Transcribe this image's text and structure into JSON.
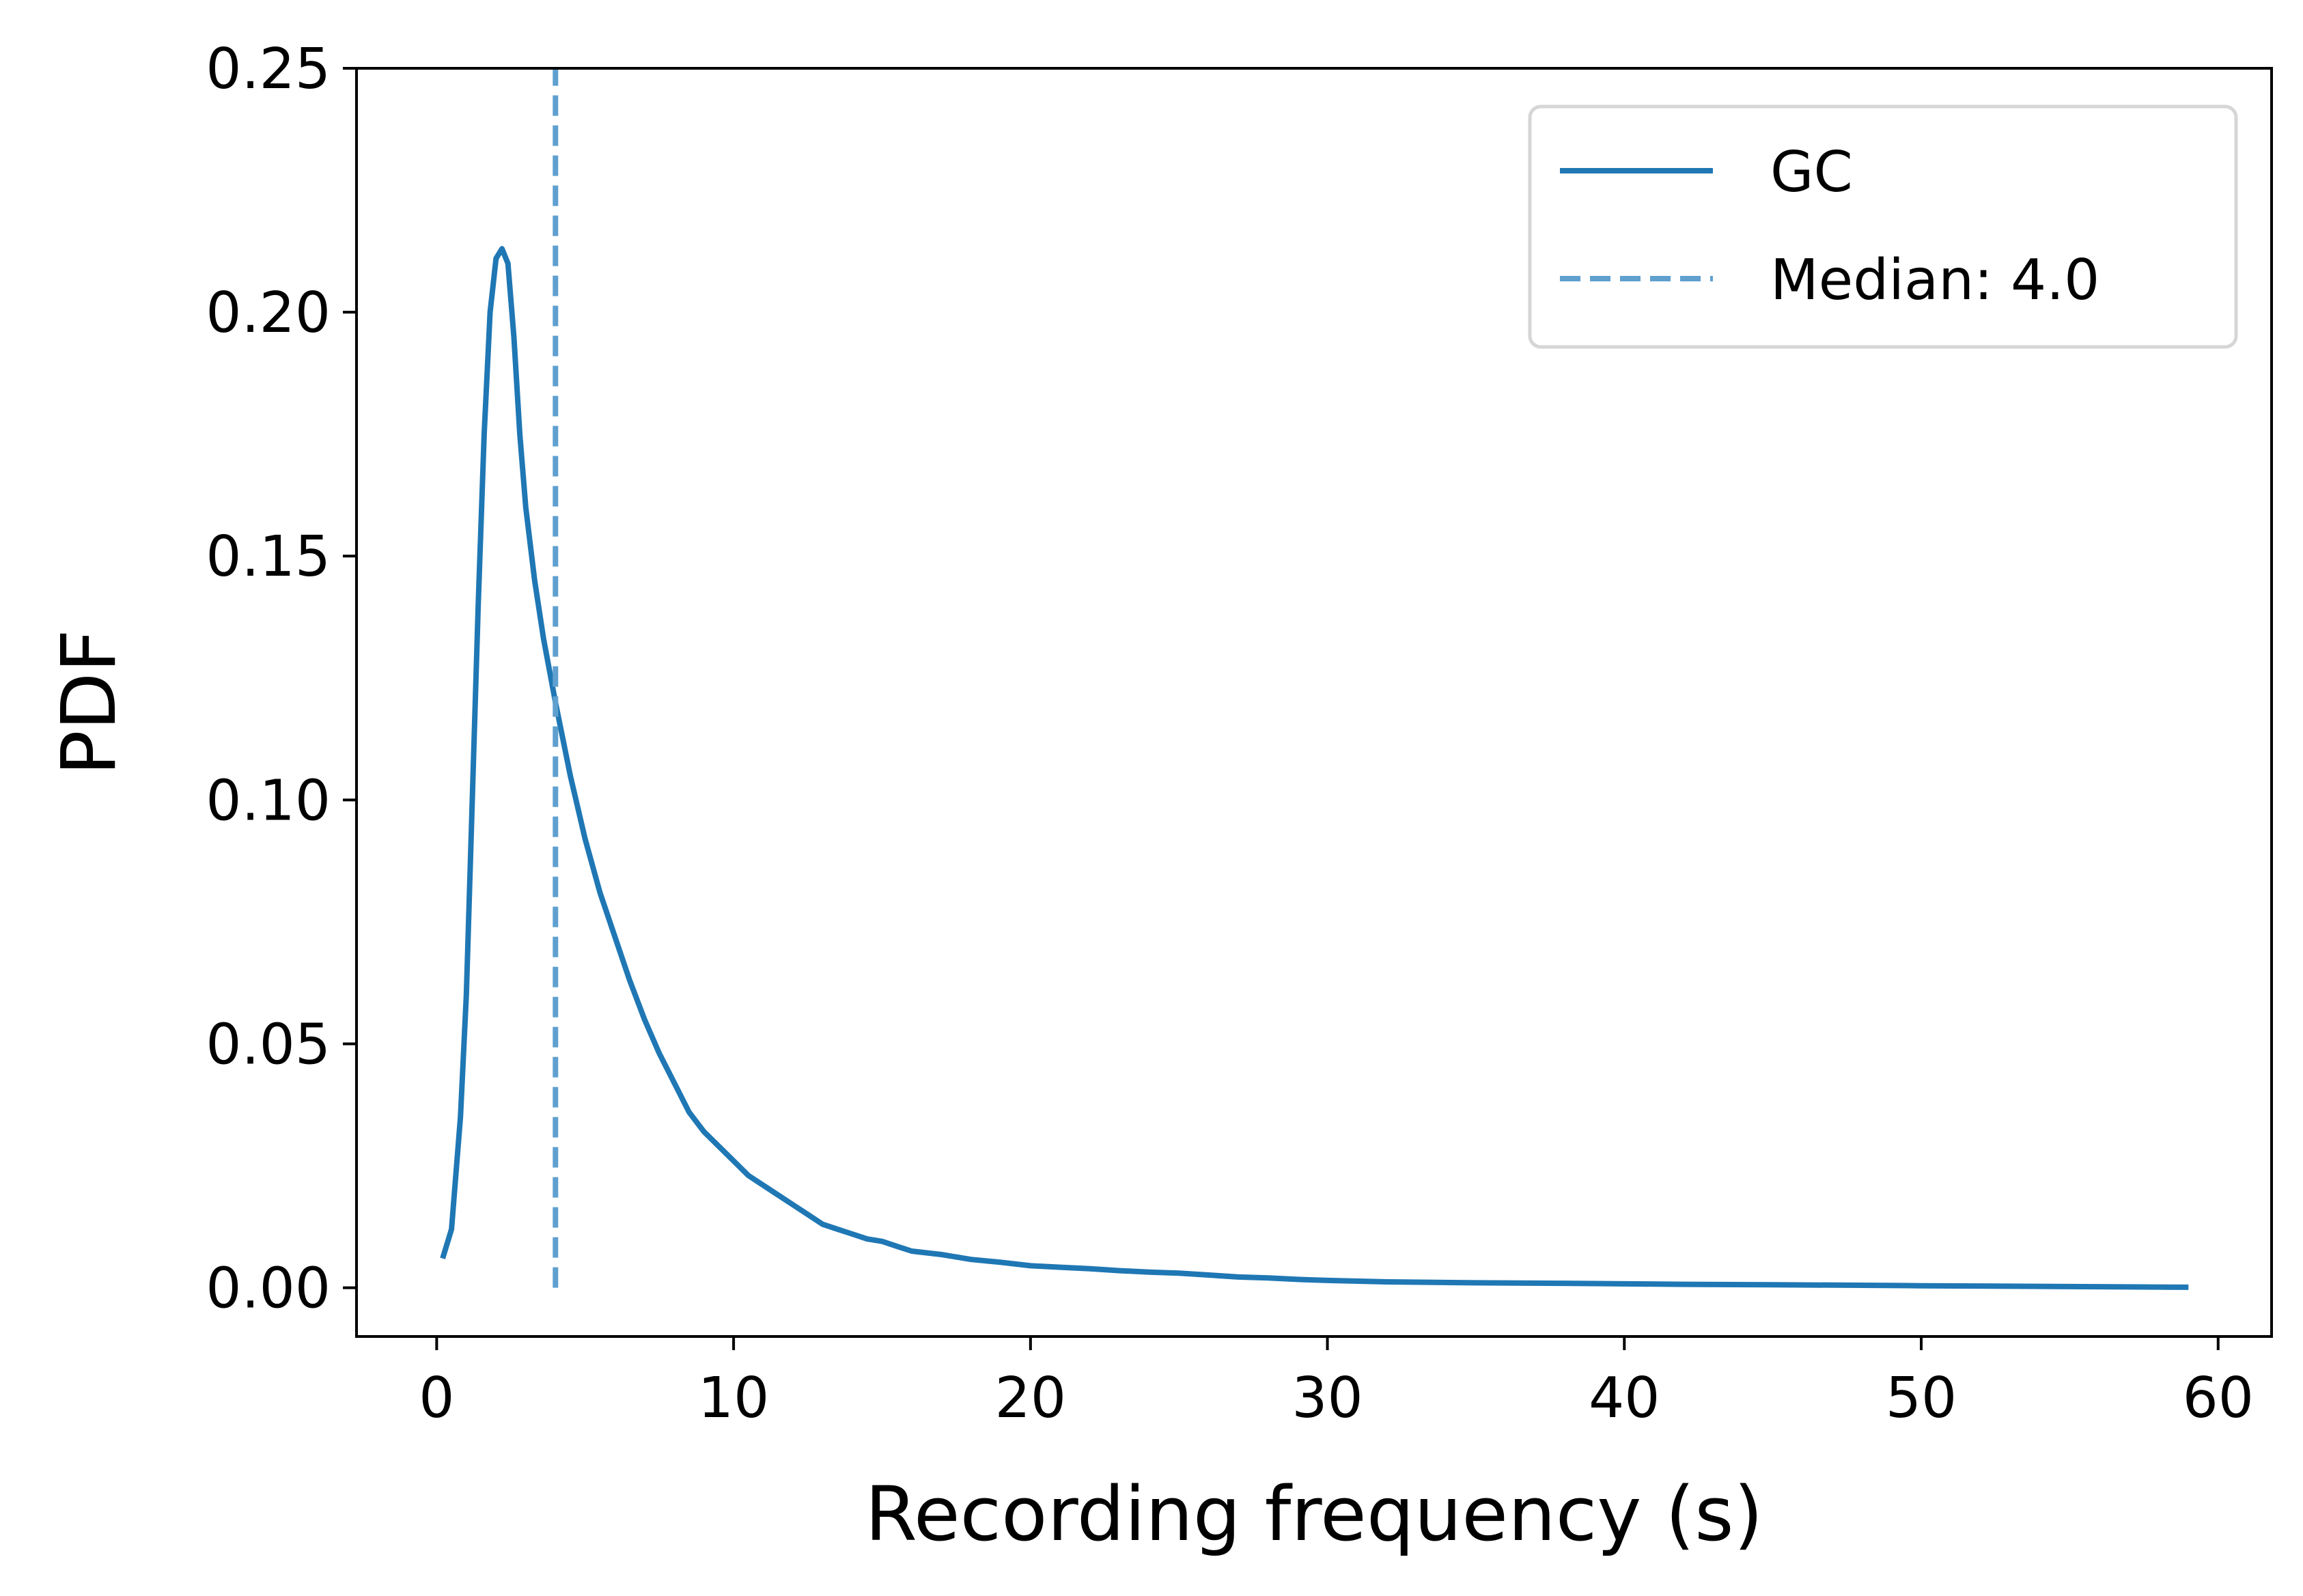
{
  "chart_data": {
    "type": "line",
    "title": "",
    "xlabel": "Recording frequency (s)",
    "ylabel": "PDF",
    "xlim": [
      -2.7,
      61.8
    ],
    "ylim": [
      -0.01,
      0.25
    ],
    "xticks": [
      "0",
      "10",
      "20",
      "30",
      "40",
      "50",
      "60"
    ],
    "xtick_values": [
      0,
      10,
      20,
      30,
      40,
      50,
      60
    ],
    "yticks": [
      "0.00",
      "0.05",
      "0.10",
      "0.15",
      "0.20",
      "0.25"
    ],
    "ytick_values": [
      0.0,
      0.05,
      0.1,
      0.15,
      0.2,
      0.25
    ],
    "grid": false,
    "legend_position": "top-right",
    "series": [
      {
        "name": "GC",
        "style": "solid",
        "color": "#1f77b4",
        "x": [
          0.2,
          0.5,
          0.8,
          1.0,
          1.2,
          1.4,
          1.6,
          1.8,
          2.0,
          2.2,
          2.4,
          2.6,
          2.8,
          3.0,
          3.3,
          3.6,
          4.0,
          4.5,
          5.0,
          5.5,
          6.0,
          6.5,
          7.0,
          7.5,
          8.0,
          8.5,
          9.0,
          9.5,
          10.0,
          10.5,
          11.0,
          11.5,
          12.0,
          12.5,
          13.0,
          13.5,
          14.0,
          14.5,
          15.0,
          15.5,
          16.0,
          17.0,
          18.0,
          19.0,
          20.0,
          21.0,
          22.0,
          23.0,
          24.0,
          25.0,
          26.0,
          27.0,
          28.0,
          29.0,
          30.0,
          32.0,
          35.0,
          38.0,
          40.0,
          42.0,
          45.0,
          48.0,
          50.0,
          53.0,
          56.0,
          59.0
        ],
        "y": [
          0.006,
          0.012,
          0.035,
          0.06,
          0.1,
          0.14,
          0.175,
          0.2,
          0.211,
          0.213,
          0.21,
          0.195,
          0.175,
          0.16,
          0.145,
          0.133,
          0.12,
          0.105,
          0.092,
          0.081,
          0.072,
          0.063,
          0.055,
          0.048,
          0.042,
          0.036,
          0.032,
          0.029,
          0.026,
          0.023,
          0.021,
          0.019,
          0.017,
          0.015,
          0.013,
          0.012,
          0.011,
          0.01,
          0.0095,
          0.0085,
          0.0075,
          0.0068,
          0.0058,
          0.0052,
          0.0045,
          0.0042,
          0.0039,
          0.0035,
          0.0032,
          0.003,
          0.0026,
          0.0022,
          0.002,
          0.0017,
          0.0015,
          0.0012,
          0.001,
          0.0009,
          0.0008,
          0.0007,
          0.0006,
          0.0005,
          0.0004,
          0.0003,
          0.0002,
          0.0001
        ]
      },
      {
        "name": "Median: 4.0",
        "style": "dashed",
        "color": "#5fa0cf",
        "x": [
          4.0,
          4.0
        ],
        "y": [
          0.0,
          0.25
        ]
      }
    ]
  }
}
